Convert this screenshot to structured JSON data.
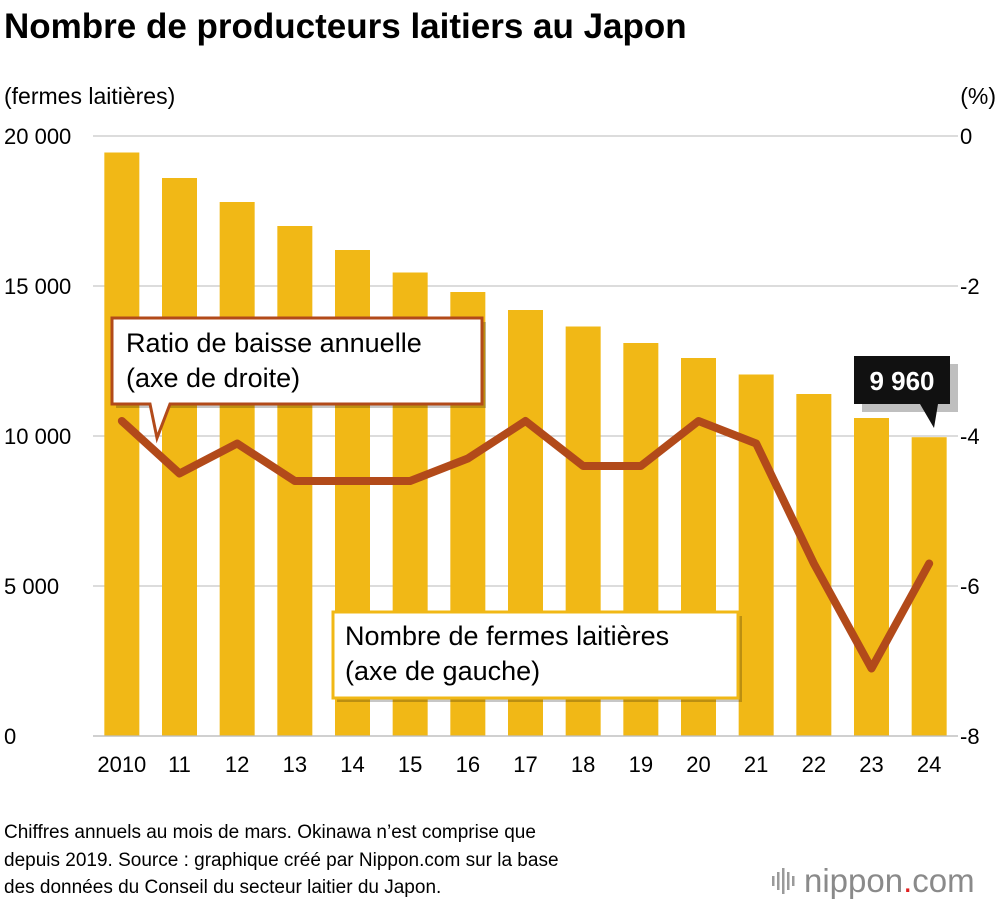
{
  "chart_data": {
    "type": "bar+line",
    "title": "Nombre de producteurs laitiers au Japon",
    "left_axis": {
      "unit": "(fermes laitières)",
      "range": [
        0,
        20000
      ],
      "ticks": [
        {
          "value": 0,
          "label": "0"
        },
        {
          "value": 5000,
          "label": "5 000"
        },
        {
          "value": 10000,
          "label": "10 000"
        },
        {
          "value": 15000,
          "label": "15 000"
        },
        {
          "value": 20000,
          "label": "20 000"
        }
      ]
    },
    "right_axis": {
      "unit": "(%)",
      "range": [
        -8,
        0
      ],
      "ticks": [
        {
          "value": 0,
          "label": "0"
        },
        {
          "value": -2,
          "label": "-2"
        },
        {
          "value": -4,
          "label": "-4"
        },
        {
          "value": -6,
          "label": "-6"
        },
        {
          "value": -8,
          "label": "-8"
        }
      ]
    },
    "categories": [
      "2010",
      "11",
      "12",
      "13",
      "14",
      "15",
      "16",
      "17",
      "18",
      "19",
      "20",
      "21",
      "22",
      "23",
      "24"
    ],
    "series": [
      {
        "name": "Nombre de fermes laitières",
        "axis": "left",
        "kind": "bar",
        "color": "#f1b816",
        "values": [
          19450,
          18600,
          17800,
          17000,
          16200,
          15450,
          14800,
          14200,
          13650,
          13100,
          12600,
          12050,
          11400,
          10600,
          9960
        ]
      },
      {
        "name": "Ratio de baisse annuelle",
        "axis": "right",
        "kind": "line",
        "color": "#b24a1a",
        "values": [
          -3.8,
          -4.5,
          -4.1,
          -4.6,
          -4.6,
          -4.6,
          -4.3,
          -3.8,
          -4.4,
          -4.4,
          -3.8,
          -4.1,
          -5.7,
          -7.1,
          -5.7
        ]
      }
    ],
    "annotations": {
      "line_callout": [
        "Ratio de baisse annuelle",
        "(axe de droite)"
      ],
      "bar_callout": [
        "Nombre de fermes laitières",
        "(axe de gauche)"
      ],
      "last_value_label": "9 960"
    },
    "grid": true
  },
  "footnote": [
    "Chiffres annuels au mois de mars. Okinawa n’est comprise que",
    "depuis 2019. Source : graphique créé par Nippon.com sur la base",
    "des données du Conseil du secteur laitier du Japon."
  ],
  "logo": {
    "text": "nippon",
    "dot": ".",
    "suffix": "com",
    "dot_color": "#e02020"
  }
}
